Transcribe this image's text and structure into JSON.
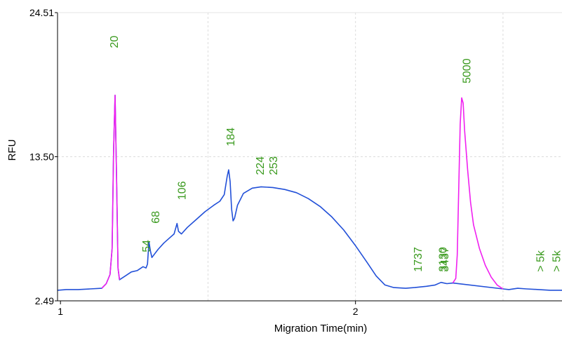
{
  "colors": {
    "trace": "#2250d8",
    "marker_peak": "#f020f0",
    "peak_label": "#3a9a1e",
    "grid": "#dcdcdc",
    "axis": "#000000"
  },
  "chart_data": {
    "type": "line",
    "xlabel": "Migration Time(min)",
    "ylabel": "RFU",
    "xlim": [
      0.99,
      2.7
    ],
    "ylim": [
      2.49,
      24.51
    ],
    "x_ticks": [
      {
        "value": 1,
        "label": "1"
      },
      {
        "value": 2,
        "label": "2"
      }
    ],
    "x_grid": [
      1.5,
      2,
      2.5
    ],
    "y_ticks": [
      {
        "value": 2.49,
        "label": "2.49"
      },
      {
        "value": 13.5,
        "label": "13.50"
      },
      {
        "value": 24.51,
        "label": "24.51"
      }
    ],
    "grid": true,
    "series": [
      {
        "points": [
          [
            0.99,
            3.3
          ],
          [
            1.02,
            3.35
          ],
          [
            1.06,
            3.35
          ],
          [
            1.1,
            3.4
          ],
          [
            1.14,
            3.45
          ],
          [
            1.155,
            3.8
          ],
          [
            1.168,
            4.5
          ],
          [
            1.175,
            6.5
          ],
          [
            1.18,
            14
          ],
          [
            1.185,
            18.2
          ],
          [
            1.19,
            12
          ],
          [
            1.195,
            5
          ],
          [
            1.2,
            4.1
          ],
          [
            1.22,
            4.4
          ],
          [
            1.24,
            4.7
          ],
          [
            1.26,
            4.8
          ],
          [
            1.28,
            5.1
          ],
          [
            1.29,
            5.0
          ],
          [
            1.295,
            5.3
          ],
          [
            1.3,
            7.0
          ],
          [
            1.305,
            6.3
          ],
          [
            1.31,
            5.8
          ],
          [
            1.33,
            6.4
          ],
          [
            1.35,
            6.9
          ],
          [
            1.37,
            7.3
          ],
          [
            1.385,
            7.6
          ],
          [
            1.39,
            8.0
          ],
          [
            1.395,
            8.4
          ],
          [
            1.4,
            7.8
          ],
          [
            1.41,
            7.6
          ],
          [
            1.43,
            8.1
          ],
          [
            1.46,
            8.7
          ],
          [
            1.49,
            9.3
          ],
          [
            1.52,
            9.8
          ],
          [
            1.54,
            10.1
          ],
          [
            1.555,
            10.6
          ],
          [
            1.565,
            12.0
          ],
          [
            1.57,
            12.5
          ],
          [
            1.575,
            11.6
          ],
          [
            1.58,
            9.5
          ],
          [
            1.585,
            8.6
          ],
          [
            1.59,
            8.8
          ],
          [
            1.6,
            9.8
          ],
          [
            1.62,
            10.7
          ],
          [
            1.65,
            11.1
          ],
          [
            1.68,
            11.2
          ],
          [
            1.72,
            11.15
          ],
          [
            1.76,
            11.0
          ],
          [
            1.8,
            10.75
          ],
          [
            1.84,
            10.3
          ],
          [
            1.88,
            9.7
          ],
          [
            1.92,
            8.9
          ],
          [
            1.96,
            7.9
          ],
          [
            2.0,
            6.7
          ],
          [
            2.04,
            5.4
          ],
          [
            2.07,
            4.4
          ],
          [
            2.1,
            3.7
          ],
          [
            2.13,
            3.5
          ],
          [
            2.17,
            3.45
          ],
          [
            2.2,
            3.5
          ],
          [
            2.24,
            3.6
          ],
          [
            2.27,
            3.7
          ],
          [
            2.29,
            3.9
          ],
          [
            2.31,
            3.8
          ],
          [
            2.33,
            3.85
          ],
          [
            2.5,
            3.4
          ],
          [
            2.52,
            3.35
          ],
          [
            2.55,
            3.45
          ],
          [
            2.58,
            3.4
          ],
          [
            2.62,
            3.35
          ],
          [
            2.66,
            3.3
          ],
          [
            2.7,
            3.3
          ]
        ]
      },
      {
        "points": [
          [
            1.14,
            3.45
          ],
          [
            1.155,
            3.8
          ],
          [
            1.168,
            4.5
          ],
          [
            1.175,
            6.5
          ],
          [
            1.18,
            14
          ],
          [
            1.185,
            18.2
          ],
          [
            1.19,
            12
          ],
          [
            1.195,
            5
          ],
          [
            1.2,
            4.1
          ]
        ]
      },
      {
        "points": [
          [
            2.33,
            3.85
          ],
          [
            2.34,
            4.2
          ],
          [
            2.345,
            6.0
          ],
          [
            2.35,
            11.0
          ],
          [
            2.355,
            16.0
          ],
          [
            2.36,
            18.0
          ],
          [
            2.365,
            17.6
          ],
          [
            2.37,
            15.5
          ],
          [
            2.38,
            12.5
          ],
          [
            2.39,
            10.0
          ],
          [
            2.4,
            8.3
          ],
          [
            2.42,
            6.5
          ],
          [
            2.44,
            5.2
          ],
          [
            2.46,
            4.3
          ],
          [
            2.48,
            3.7
          ],
          [
            2.5,
            3.4
          ]
        ]
      }
    ],
    "peak_labels": [
      {
        "text": "20",
        "x": 1.18,
        "y": 21.8
      },
      {
        "text": "54",
        "x": 1.29,
        "y": 6.2
      },
      {
        "text": "68",
        "x": 1.32,
        "y": 8.4
      },
      {
        "text": "106",
        "x": 1.41,
        "y": 10.2
      },
      {
        "text": "184",
        "x": 1.575,
        "y": 14.3
      },
      {
        "text": "224",
        "x": 1.675,
        "y": 12.1
      },
      {
        "text": "253",
        "x": 1.72,
        "y": 12.1
      },
      {
        "text": "1737",
        "x": 2.21,
        "y": 4.7
      },
      {
        "text": "3130",
        "x": 2.295,
        "y": 4.7
      },
      {
        "text": "3437",
        "x": 2.3,
        "y": 4.7
      },
      {
        "text": "5000",
        "x": 2.375,
        "y": 19.1
      },
      {
        "text": "> 5k",
        "x": 2.625,
        "y": 4.7
      },
      {
        "text": "> 5k",
        "x": 2.68,
        "y": 4.7
      }
    ]
  }
}
